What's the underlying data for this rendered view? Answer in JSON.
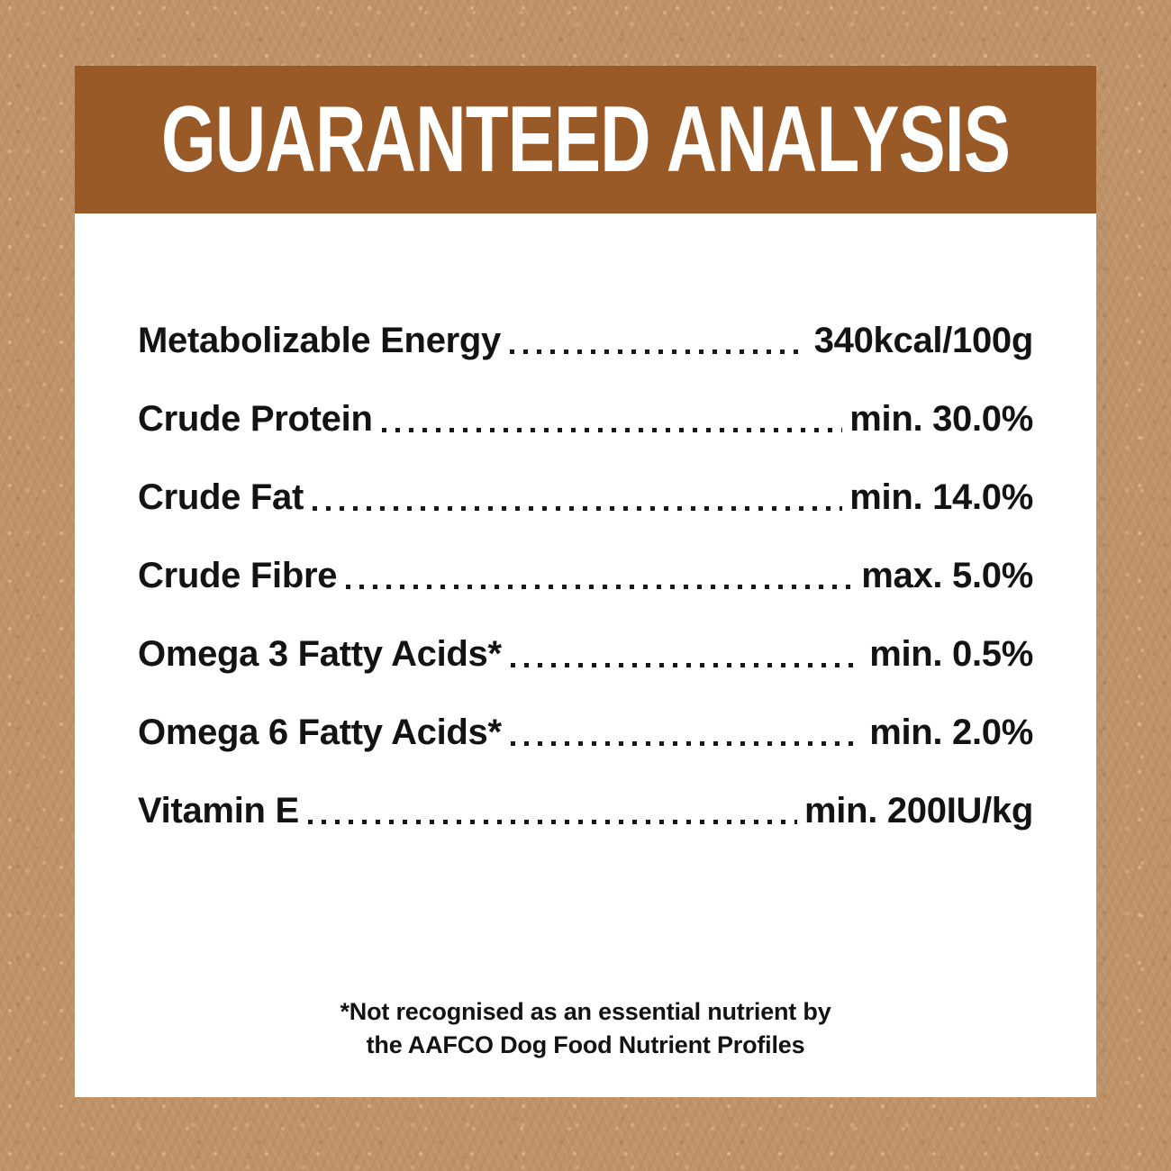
{
  "header": {
    "title": "GUARANTEED ANALYSIS"
  },
  "rows": [
    {
      "label": "Metabolizable Energy",
      "value": "340kcal/100g"
    },
    {
      "label": "Crude Protein",
      "value": "min. 30.0%"
    },
    {
      "label": "Crude Fat",
      "value": "min. 14.0%"
    },
    {
      "label": "Crude Fibre",
      "value": "max. 5.0%"
    },
    {
      "label": "Omega 3 Fatty Acids*",
      "value": "min. 0.5%"
    },
    {
      "label": "Omega 6 Fatty Acids*",
      "value": "min. 2.0%"
    },
    {
      "label": "Vitamin E",
      "value": "min. 200IU/kg"
    }
  ],
  "footnote": {
    "line1": "*Not recognised as an essential nutrient by",
    "line2": "the AAFCO Dog Food Nutrient Profiles"
  },
  "colors": {
    "background": "#bf9369",
    "header_bg": "#9a5a28",
    "panel_bg": "#ffffff",
    "text": "#131313",
    "title_text": "#ffffff"
  }
}
